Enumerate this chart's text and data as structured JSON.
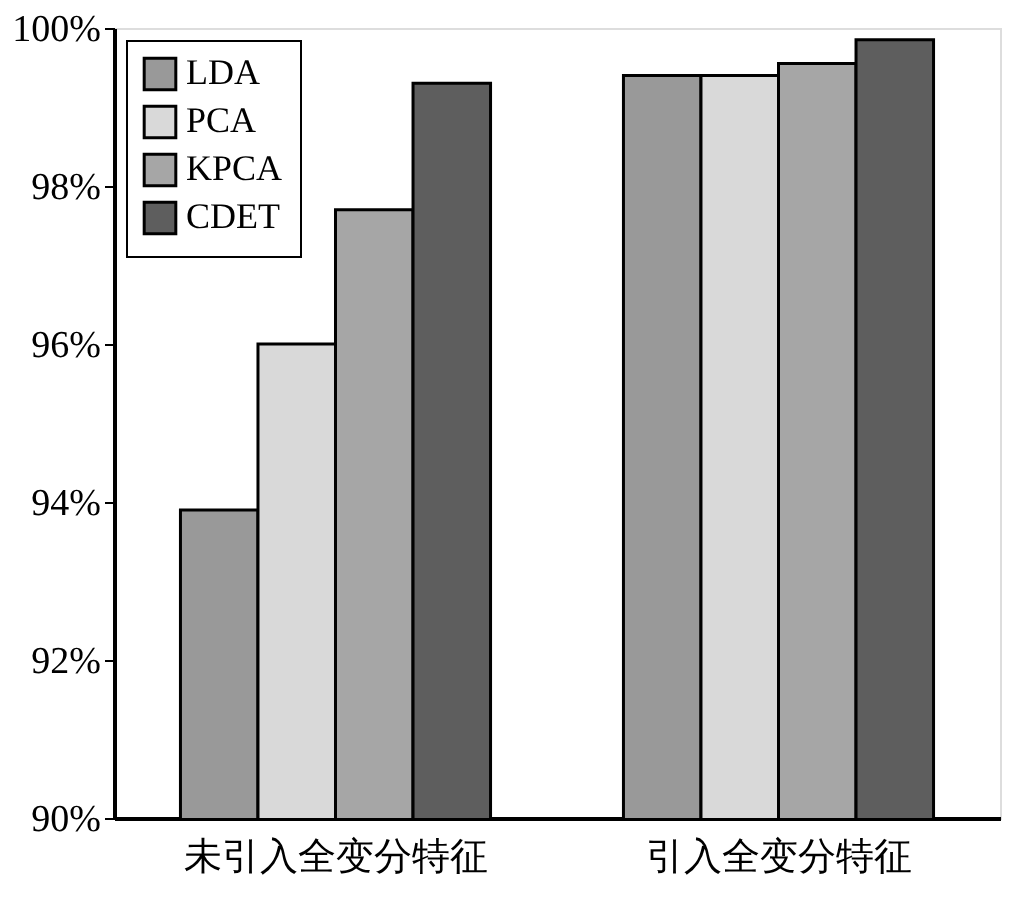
{
  "chart_data": {
    "type": "bar",
    "categories": [
      "未引入全变分特征",
      "引入全变分特征"
    ],
    "series": [
      {
        "name": "LDA",
        "color": "#999999",
        "values": [
          93.9,
          99.4
        ]
      },
      {
        "name": "PCA",
        "color": "#d9d9d9",
        "values": [
          96.0,
          99.4
        ]
      },
      {
        "name": "KPCA",
        "color": "#a6a6a6",
        "values": [
          97.7,
          99.55
        ]
      },
      {
        "name": "CDET",
        "color": "#5e5e5e",
        "values": [
          99.3,
          99.85
        ]
      }
    ],
    "ylim": [
      90,
      100
    ],
    "yticks": [
      {
        "value": 90,
        "label": "90%"
      },
      {
        "value": 92,
        "label": "92%"
      },
      {
        "value": 94,
        "label": "94%"
      },
      {
        "value": 96,
        "label": "96%"
      },
      {
        "value": 98,
        "label": "98%"
      },
      {
        "value": 100,
        "label": "100%"
      }
    ],
    "grid": false,
    "legend": "top left"
  }
}
